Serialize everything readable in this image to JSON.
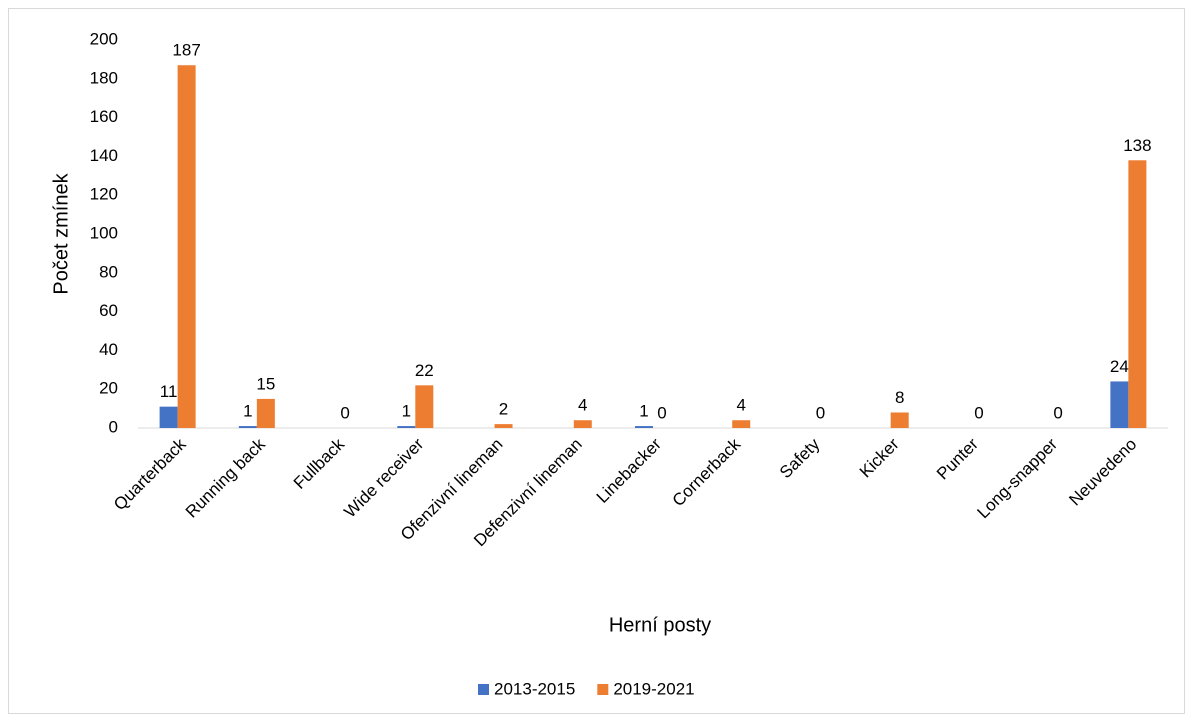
{
  "chart_data": {
    "type": "bar",
    "x_label": "Herní posty",
    "y_label": "Počet zmínek",
    "categories": [
      "Quarterback",
      "Running back",
      "Fullback",
      "Wide receiver",
      "Ofenzivní lineman",
      "Defenzivní lineman",
      "Linebacker",
      "Cornerback",
      "Safety",
      "Kicker",
      "Punter",
      "Long-snapper",
      "Neuvedeno"
    ],
    "series": [
      {
        "name": "2013-2015",
        "color": "#4472c4",
        "values": [
          11,
          1,
          null,
          1,
          null,
          null,
          1,
          null,
          null,
          null,
          null,
          null,
          24
        ]
      },
      {
        "name": "2019-2021",
        "color": "#ed7d31",
        "values": [
          187,
          15,
          0,
          22,
          2,
          4,
          0,
          4,
          0,
          8,
          0,
          0,
          138
        ]
      }
    ],
    "ylim": [
      0,
      200
    ],
    "yticks": [
      0,
      20,
      40,
      60,
      80,
      100,
      120,
      140,
      160,
      180,
      200
    ],
    "grid": false,
    "legend": "bottom"
  }
}
